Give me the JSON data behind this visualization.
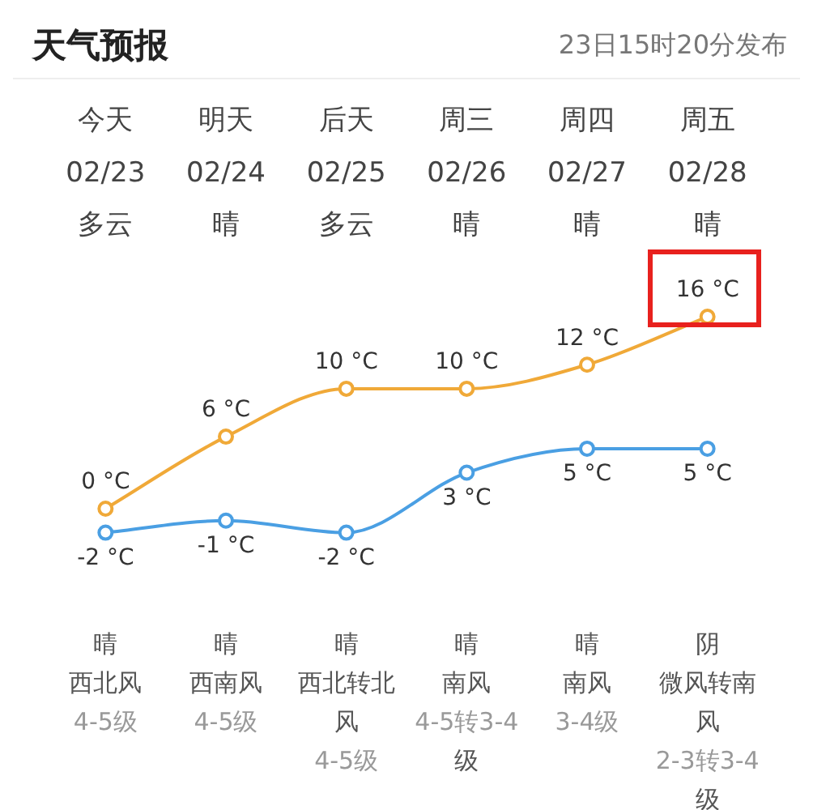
{
  "chart_data": {
    "type": "line",
    "title": "天气预报",
    "subtitle": "23日15时20分发布",
    "categories": [
      "今天\n02/23\n多云",
      "明天\n02/24\n晴",
      "后天\n02/25\n多云",
      "周三\n02/26\n晴",
      "周四\n02/27\n晴",
      "周五\n02/28\n晴"
    ],
    "series": [
      {
        "color": "#f0a938",
        "values": [
          0,
          6,
          10,
          10,
          12,
          16
        ],
        "value_labels": [
          "0 °C",
          "6 °C",
          "10 °C",
          "10 °C",
          "12 °C",
          "16 °C"
        ]
      },
      {
        "color": "#4a9fe3",
        "values": [
          -2,
          -1,
          -2,
          3,
          5,
          5
        ],
        "value_labels": [
          "-2 °C",
          "-1 °C",
          "-2 °C",
          "3 °C",
          "5 °C",
          "5 °C"
        ]
      }
    ],
    "annotations": [
      "晴",
      "西北风4-5级",
      "晴",
      "西南风4-5级",
      "晴",
      "西北转北风4-5级",
      "晴",
      "南风4-5转3-4级",
      "晴",
      "南风3-4级",
      "阴",
      "微风转南风2-3转3-4级"
    ],
    "marker": "circle",
    "tick_labels": "x",
    "grid": false,
    "legend": false
  }
}
